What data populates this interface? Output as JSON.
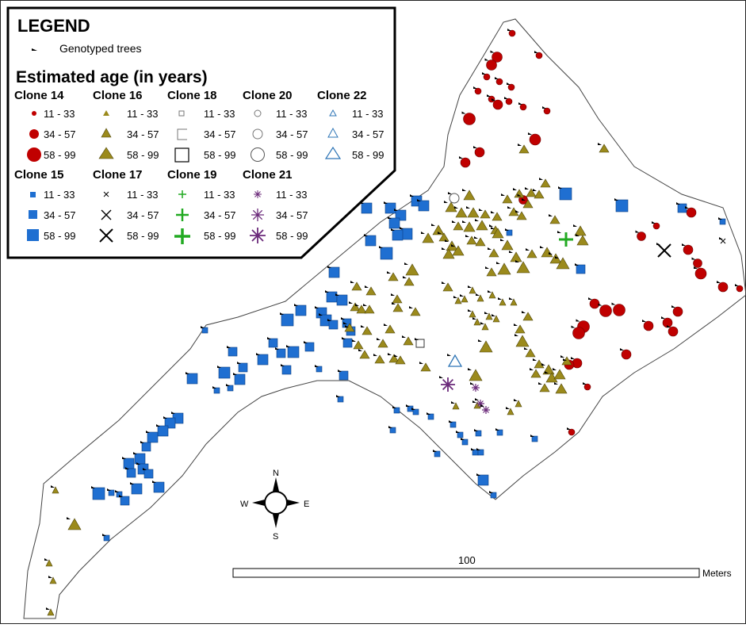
{
  "legend": {
    "title": "LEGEND",
    "genotyped_label": "Genotyped trees",
    "age_heading": "Estimated age (in years)",
    "age_classes": [
      "11 - 33",
      "34 - 57",
      "58 - 99"
    ],
    "clones_row1": [
      {
        "name": "Clone 14",
        "symbol": "circle-filled",
        "color": "#c00000"
      },
      {
        "name": "Clone 16",
        "symbol": "triangle-filled",
        "color": "#9b8a1c"
      },
      {
        "name": "Clone 18",
        "symbol": "square-open",
        "color": "#333333"
      },
      {
        "name": "Clone 20",
        "symbol": "circle-open",
        "color": "#555555"
      },
      {
        "name": "Clone 22",
        "symbol": "triangle-open",
        "color": "#2e75b6"
      }
    ],
    "clones_row2": [
      {
        "name": "Clone 15",
        "symbol": "square-filled",
        "color": "#1f6fd1"
      },
      {
        "name": "Clone 17",
        "symbol": "x-mark",
        "color": "#000000"
      },
      {
        "name": "Clone 19",
        "symbol": "plus",
        "color": "#22aa22"
      },
      {
        "name": "Clone 21",
        "symbol": "asterisk",
        "color": "#6b2a7a"
      }
    ]
  },
  "compass": {
    "n": "N",
    "s": "S",
    "e": "E",
    "w": "W"
  },
  "scale_bar": {
    "value": "100",
    "unit": "Meters"
  }
}
